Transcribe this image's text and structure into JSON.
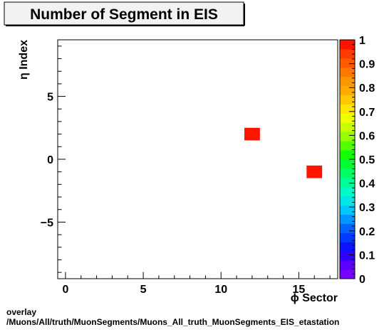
{
  "chart_data": {
    "type": "heatmap",
    "title": "Number of Segment in EIS",
    "xlabel": "ϕ Sector",
    "ylabel": "η Index",
    "xlim": [
      -0.5,
      17.5
    ],
    "ylim": [
      -9.5,
      9.5
    ],
    "x_ticks": [
      0,
      5,
      10,
      15
    ],
    "y_ticks": [
      -5,
      0,
      5
    ],
    "cells": [
      {
        "x": 12,
        "y": 2,
        "value": 1
      },
      {
        "x": 16,
        "y": -1,
        "value": 1
      }
    ],
    "colorbar": {
      "range": [
        0,
        1
      ],
      "ticks": [
        "0",
        "0.1",
        "0.2",
        "0.3",
        "0.4",
        "0.5",
        "0.6",
        "0.7",
        "0.8",
        "0.9",
        "1"
      ],
      "colors": [
        "#7a00ff",
        "#5a00ff",
        "#3200ff",
        "#0a14ff",
        "#003cff",
        "#0064ff",
        "#0096ff",
        "#00c8ff",
        "#00e6e6",
        "#00fac8",
        "#00ff96",
        "#00ff64",
        "#00ff32",
        "#14ff00",
        "#50ff00",
        "#96ff00",
        "#c8ff00",
        "#f0ff00",
        "#ffe600",
        "#ffc800",
        "#ffaa00",
        "#ff9600",
        "#ff7800",
        "#ff5a00",
        "#ff3c00",
        "#ff1400"
      ]
    },
    "legend": "none",
    "grid": false
  },
  "footer": {
    "line1": "overlay",
    "line2": "/Muons/All/truth/MuonSegments/Muons_All_truth_MuonSegments_EIS_etastation"
  }
}
